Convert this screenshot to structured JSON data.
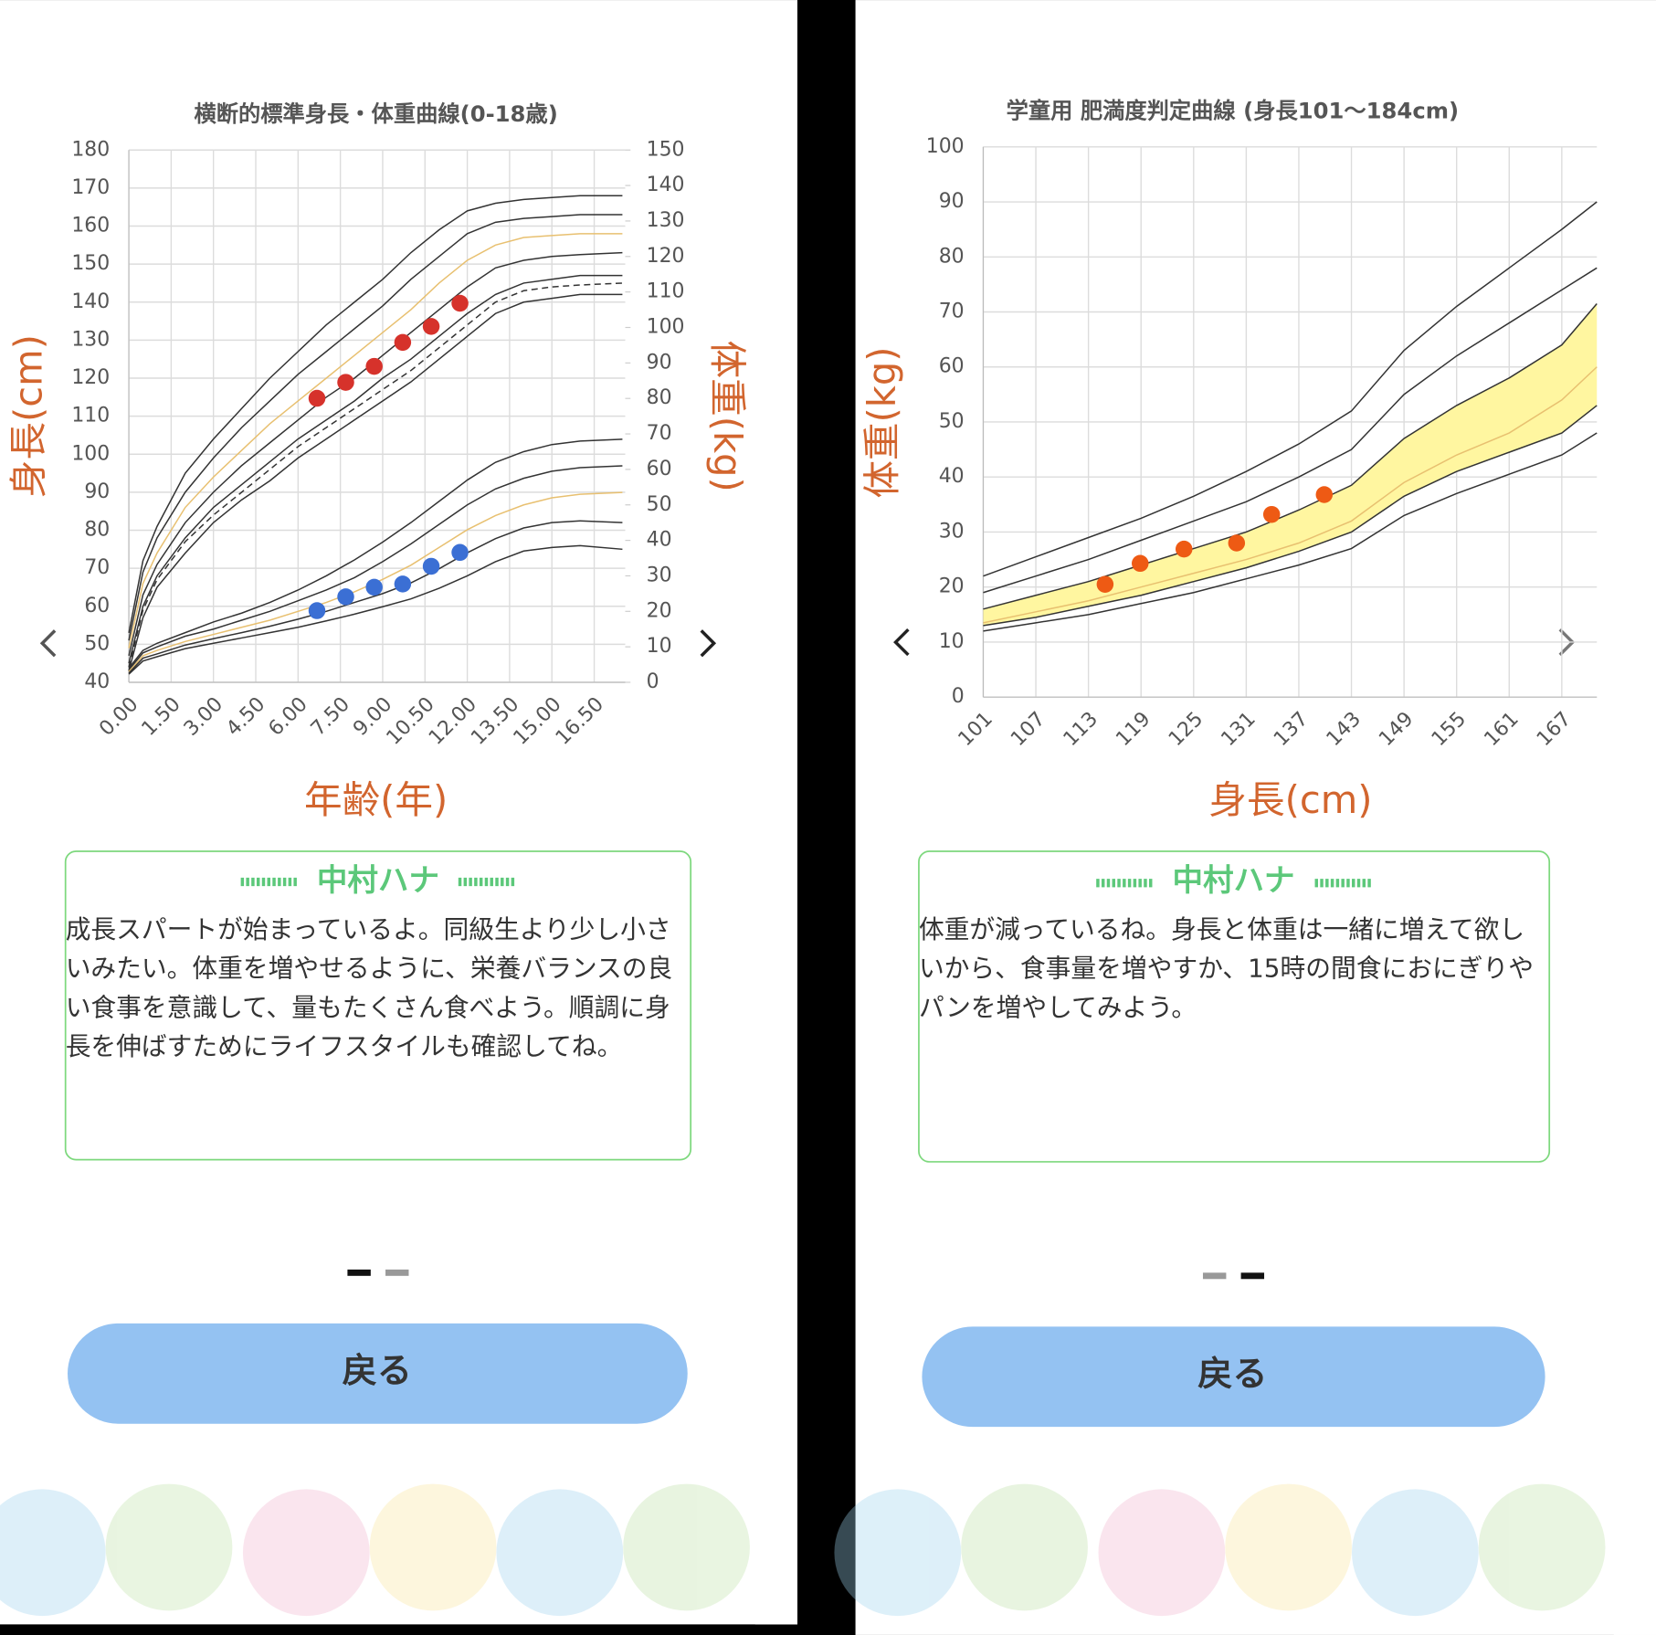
{
  "chart_data": [
    {
      "type": "line",
      "title": "横断的標準身長・体重曲線(0-18歳)",
      "ylabel": "身長(cm)",
      "y2label": "体重(kg)",
      "xlabel": "年齢(年)",
      "x": [
        0,
        0.5,
        1,
        2,
        3,
        4,
        5,
        6,
        7,
        8,
        9,
        10,
        11,
        12,
        13,
        14,
        15,
        16,
        17.5
      ],
      "xlim": [
        0,
        17.6
      ],
      "xticks": [
        {
          "value": 0,
          "label": "0.00"
        },
        {
          "value": 1.5,
          "label": "1.50"
        },
        {
          "value": 3,
          "label": "3.00"
        },
        {
          "value": 4.5,
          "label": "4.50"
        },
        {
          "value": 6,
          "label": "6.00"
        },
        {
          "value": 7.5,
          "label": "7.50"
        },
        {
          "value": 9,
          "label": "9.00"
        },
        {
          "value": 10.5,
          "label": "10.50"
        },
        {
          "value": 12,
          "label": "12.00"
        },
        {
          "value": 13.5,
          "label": "13.50"
        },
        {
          "value": 15,
          "label": "15.00"
        },
        {
          "value": 16.5,
          "label": "16.50"
        }
      ],
      "ylim": [
        40,
        180
      ],
      "yticks": [
        40,
        50,
        60,
        70,
        80,
        90,
        100,
        110,
        120,
        130,
        140,
        150,
        160,
        170,
        180
      ],
      "y2lim": [
        0,
        150
      ],
      "y2ticks": [
        0,
        10,
        20,
        30,
        40,
        50,
        60,
        70,
        80,
        90,
        100,
        110,
        120,
        130,
        140,
        150
      ],
      "grid": true,
      "series": [
        {
          "color": "#333333",
          "values": [
            53,
            72,
            81,
            95,
            104,
            112,
            120,
            127,
            134,
            140,
            146,
            153,
            159,
            164,
            166,
            167,
            167.5,
            168,
            168
          ]
        },
        {
          "color": "#333333",
          "values": [
            51,
            69,
            78,
            90,
            99,
            107,
            114,
            121,
            127,
            133,
            139,
            146,
            152,
            158,
            161,
            162,
            162.5,
            163,
            163
          ]
        },
        {
          "color": "#e8c070",
          "values": [
            49,
            66,
            74,
            86,
            94,
            101,
            108,
            114,
            120,
            126,
            132,
            138,
            145,
            151,
            155,
            157,
            157.5,
            158,
            158
          ]
        },
        {
          "color": "#333333",
          "values": [
            47,
            63,
            71,
            82,
            90,
            97,
            103,
            109,
            115,
            120,
            126,
            132,
            138,
            144,
            149,
            151,
            152,
            152.5,
            153
          ]
        },
        {
          "color": "#333333",
          "values": [
            45,
            60,
            68,
            78,
            86,
            92,
            98,
            104,
            109,
            114,
            120,
            125,
            131,
            137,
            142,
            145,
            146,
            147,
            147
          ]
        },
        {
          "color": "#333333",
          "dash": true,
          "values": [
            44,
            59,
            67,
            77,
            84,
            90,
            96,
            102,
            107,
            112,
            117,
            122,
            128,
            134,
            140,
            143,
            144,
            144.5,
            145
          ]
        },
        {
          "color": "#333333",
          "values": [
            43,
            57,
            65,
            74,
            82,
            88,
            93,
            99,
            104,
            109,
            114,
            119,
            125,
            131,
            137,
            140,
            141,
            142,
            142
          ]
        },
        {
          "color": "#333333",
          "axis": "y2",
          "values": [
            4,
            9,
            11,
            14,
            17,
            19.5,
            22.5,
            26,
            30,
            34.5,
            39.5,
            45,
            51,
            57,
            62,
            65,
            67,
            68,
            68.5
          ]
        },
        {
          "color": "#333333",
          "axis": "y2",
          "values": [
            3.5,
            8.3,
            10,
            13,
            15,
            17.5,
            20,
            23,
            26,
            29.5,
            34,
            39,
            44.5,
            50,
            54.5,
            57.5,
            59.5,
            60.5,
            61
          ]
        },
        {
          "color": "#e8c070",
          "axis": "y2",
          "values": [
            3,
            7.5,
            9,
            11.5,
            13.5,
            15.5,
            17.5,
            20,
            22.5,
            25.5,
            29,
            33,
            38,
            43,
            47,
            50,
            52,
            53,
            53.5
          ]
        },
        {
          "color": "#333333",
          "axis": "y2",
          "values": [
            2.6,
            6.8,
            8,
            10.5,
            12.3,
            14,
            15.8,
            17.8,
            20,
            22.5,
            25,
            28,
            32,
            36.5,
            40.5,
            43.5,
            45,
            45.5,
            45
          ]
        },
        {
          "color": "#333333",
          "axis": "y2",
          "values": [
            2.3,
            6,
            7.2,
            9.5,
            11,
            12.5,
            14,
            15.5,
            17.3,
            19.2,
            21.3,
            23.5,
            26.5,
            30,
            34,
            37,
            38,
            38.5,
            37.5
          ]
        },
        {
          "color": "#d6322b",
          "marker": true,
          "x": [
            6.67,
            7.69,
            8.7,
            9.71,
            10.72,
            11.74
          ],
          "values": [
            114.7,
            118.9,
            123.1,
            129.4,
            133.6,
            139.7
          ]
        },
        {
          "color": "#3b6fd4",
          "marker": true,
          "axis": "y2",
          "x": [
            6.67,
            7.69,
            8.7,
            9.71,
            10.72,
            11.74
          ],
          "values": [
            20.2,
            24.1,
            26.8,
            27.7,
            32.7,
            36.6
          ]
        }
      ]
    },
    {
      "type": "line",
      "title": "学童用 肥満度判定曲線 (身長101〜184cm)",
      "ylabel": "体重(kg)",
      "xlabel": "身長(cm)",
      "x": [
        101,
        107,
        113,
        119,
        125,
        131,
        137,
        143,
        149,
        155,
        161,
        167,
        171
      ],
      "xlim": [
        101,
        171
      ],
      "xticks": [
        101,
        107,
        113,
        119,
        125,
        131,
        137,
        143,
        149,
        155,
        161,
        167
      ],
      "ylim": [
        0,
        100
      ],
      "yticks": [
        0,
        10,
        20,
        30,
        40,
        50,
        60,
        70,
        80,
        90,
        100
      ],
      "grid": true,
      "band_color": "#fff6a0",
      "series": [
        {
          "color": "#333333",
          "values": [
            22,
            25.5,
            29,
            32.5,
            36.5,
            41,
            46,
            52,
            63,
            71,
            78,
            85,
            90
          ]
        },
        {
          "color": "#333333",
          "values": [
            19,
            22,
            25,
            28.5,
            32,
            35.5,
            40,
            45,
            55,
            62,
            68,
            74,
            78
          ]
        },
        {
          "color": "#333333",
          "band": "upper",
          "values": [
            16,
            18.5,
            21,
            24,
            27,
            30,
            34,
            38.5,
            47,
            53,
            58,
            64,
            71.5
          ]
        },
        {
          "color": "#e8c070",
          "values": [
            13.5,
            15.5,
            17.5,
            20,
            22.5,
            25,
            28,
            32,
            39,
            44,
            48,
            54,
            60
          ]
        },
        {
          "color": "#333333",
          "band": "lower",
          "values": [
            13,
            14.5,
            16.5,
            18.5,
            21,
            23.5,
            26.5,
            30,
            36.5,
            41,
            44.5,
            48,
            53
          ]
        },
        {
          "color": "#333333",
          "values": [
            12,
            13.5,
            15,
            17,
            19,
            21.5,
            24,
            27,
            33,
            37,
            40.5,
            44,
            48
          ]
        },
        {
          "color": "#ee5a14",
          "marker": true,
          "x": [
            114.9,
            118.9,
            123.9,
            129.9,
            133.9,
            139.9
          ],
          "values": [
            20.5,
            24.3,
            26.9,
            28.0,
            33.2,
            36.8
          ]
        }
      ]
    }
  ],
  "screens": [
    {
      "name": "中村ハナ",
      "message": "成長スパートが始まっているよ。同級生より少し小さいみたい。体重を増やせるように、栄養バランスの良い食事を意識して、量もたくさん食べよう。順調に身長を伸ばすためにライフスタイルも確認してね。",
      "button": "戻る"
    },
    {
      "name": "中村ハナ",
      "message": "体重が減っているね。身長と体重は一緒に増えて欲しいから、食事量を増やすか、15時の間食におにぎりやパンを増やしてみよう。",
      "button": "戻る"
    }
  ]
}
